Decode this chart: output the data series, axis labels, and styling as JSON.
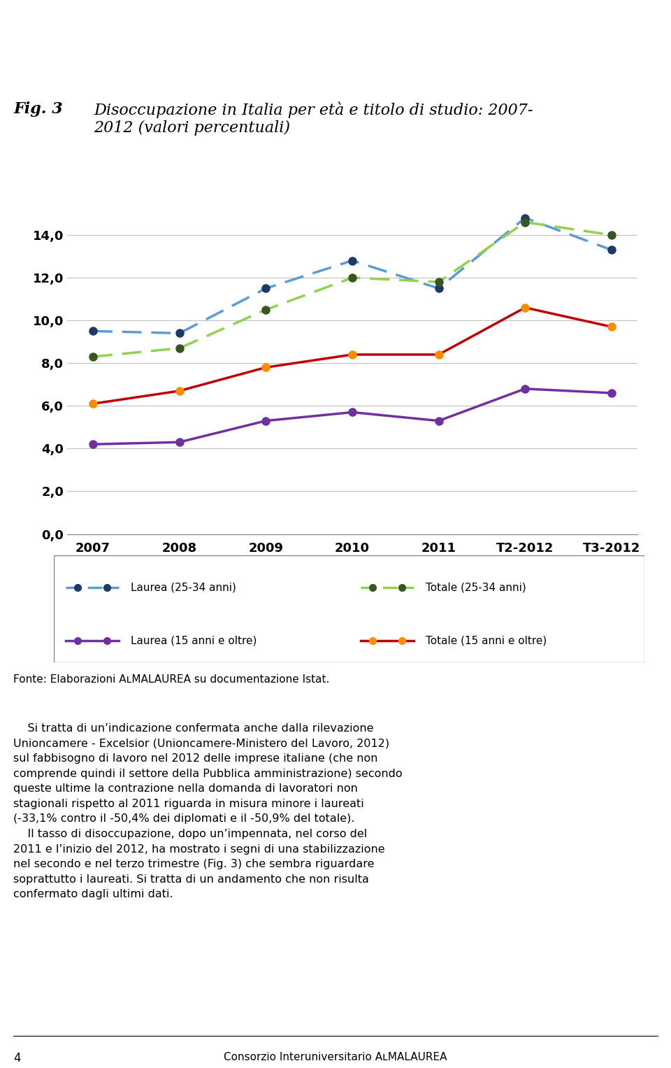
{
  "x_labels": [
    "2007",
    "2008",
    "2009",
    "2010",
    "2011",
    "T2-2012",
    "T3-2012"
  ],
  "series": {
    "laurea_25_34": {
      "values": [
        9.5,
        9.4,
        11.5,
        12.8,
        11.5,
        14.8,
        13.3
      ],
      "color": "#5B9BD5",
      "linestyle": "dashed",
      "marker": "o",
      "marker_face": "#1F3864",
      "label": "Laurea (25-34 anni)"
    },
    "totale_25_34": {
      "values": [
        8.3,
        8.7,
        10.5,
        12.0,
        11.8,
        14.6,
        14.0
      ],
      "color": "#92D050",
      "linestyle": "dashed",
      "marker": "o",
      "marker_face": "#375623",
      "label": "Totale (25-34 anni)"
    },
    "totale_15_oltre": {
      "values": [
        6.1,
        6.7,
        7.8,
        8.4,
        8.4,
        10.6,
        9.7
      ],
      "color": "#C00000",
      "linestyle": "solid",
      "marker": "o",
      "marker_face": "#FF8C00",
      "label": "Totale (15 anni e oltre)"
    },
    "laurea_15_oltre": {
      "values": [
        4.2,
        4.3,
        5.3,
        5.7,
        5.3,
        6.8,
        6.6
      ],
      "color": "#7030A0",
      "linestyle": "solid",
      "marker": "o",
      "marker_face": "#7030A0",
      "label": "Laurea (15 anni e oltre)"
    }
  },
  "ylim": [
    0,
    16.0
  ],
  "yticks": [
    0.0,
    2.0,
    4.0,
    6.0,
    8.0,
    10.0,
    12.0,
    14.0
  ],
  "title_fig": "Fig. 3",
  "title_main": "Disoccupazione in Italia per à e titolo di studio: 2007-\n2012 (valori percentuali)",
  "background_color": "#FFFFFF",
  "plot_bg": "#FFFFFF",
  "grid_color": "#C0C0C0",
  "marker_size": 8,
  "linewidth": 2.5,
  "dash_pattern": [
    8,
    4
  ],
  "fonte_text": "Fonte: Elaborazioni AlmaLaurea su documentazione Istat.",
  "page_number": "4",
  "footer_text": "Consorzio Interuniversitario AlmaLaurea"
}
